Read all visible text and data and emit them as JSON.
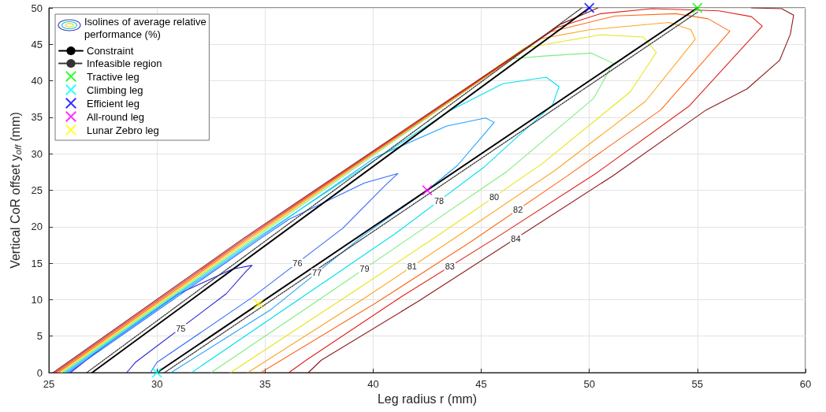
{
  "chart_data": {
    "type": "line",
    "xlabel": "Leg radius r (mm)",
    "ylabel": "Vertical CoR offset y$_{off}$ (mm)",
    "legend_title": "Isolines of average relative performance (%)",
    "xlim": [
      25,
      60
    ],
    "xticks": [
      25,
      30,
      35,
      40,
      45,
      50,
      55,
      60
    ],
    "ylim": [
      0,
      50
    ],
    "yticks": [
      0,
      5,
      10,
      15,
      20,
      25,
      30,
      35,
      40,
      45,
      50
    ],
    "grid": true,
    "legend": "top left",
    "marker": "cross",
    "annotations": [
      {
        "text": "75",
        "x": 31.1,
        "y": 6.1
      },
      {
        "text": "76",
        "x": 36.5,
        "y": 15.05
      },
      {
        "text": "77",
        "x": 37.4,
        "y": 13.7
      },
      {
        "text": "78",
        "x": 43.05,
        "y": 23.55
      },
      {
        "text": "79",
        "x": 39.6,
        "y": 14.25
      },
      {
        "text": "80",
        "x": 45.6,
        "y": 24.1
      },
      {
        "text": "81",
        "x": 41.8,
        "y": 14.55
      },
      {
        "text": "82",
        "x": 46.7,
        "y": 22.35
      },
      {
        "text": "83",
        "x": 43.55,
        "y": 14.55
      },
      {
        "text": "84",
        "x": 46.6,
        "y": 18.4
      }
    ],
    "series": [
      {
        "color": "#2424d8",
        "marker": "none",
        "x": [
          26.0,
          27.5,
          31.0,
          33.5,
          34.4,
          34.1,
          33.2,
          29.0,
          28.6
        ],
        "values": [
          0,
          3.5,
          10.8,
          14.2,
          14.7,
          13.8,
          10.8,
          1.4,
          0
        ]
      },
      {
        "color": "#2f6bff",
        "marker": "none",
        "x": [
          25.9,
          34.8,
          36.1,
          39.6,
          41.15,
          40.5,
          38.6,
          34.4,
          30.0,
          29.7
        ],
        "values": [
          0,
          18.4,
          21,
          26.0,
          27.3,
          25.5,
          19.8,
          10.3,
          1.4,
          0
        ]
      },
      {
        "color": "#1ea0ff",
        "marker": "none",
        "x": [
          25.8,
          34.7,
          40.1,
          43.4,
          45.2,
          45.6,
          43.9,
          42.5,
          39.5,
          35.3,
          30.65
        ],
        "values": [
          0,
          18.4,
          29.5,
          33.8,
          34.9,
          34.3,
          28.4,
          25,
          18.7,
          8.7,
          0
        ]
      },
      {
        "color": "#00e0f0",
        "marker": "none",
        "x": [
          25.7,
          34.6,
          43.6,
          46.0,
          48.0,
          48.6,
          48.3,
          45.1,
          41.0,
          31.6
        ],
        "values": [
          0,
          18.4,
          36.0,
          39.6,
          40.5,
          39.2,
          36.7,
          28.1,
          19.0,
          0
        ]
      },
      {
        "color": "#80ec80",
        "marker": "none",
        "x": [
          25.6,
          34.5,
          46.4,
          47.9,
          50.1,
          51.1,
          50.2,
          46.2,
          41.8,
          37.4,
          32.5
        ],
        "values": [
          0,
          18.4,
          43.0,
          43.4,
          43.8,
          42.4,
          37.6,
          27.6,
          18.7,
          9.8,
          0
        ]
      },
      {
        "color": "#e6e619",
        "marker": "none",
        "x": [
          25.55,
          34.4,
          47.0,
          50.5,
          52.5,
          53.1,
          51.9,
          47.8,
          43.4,
          39.0,
          33.4
        ],
        "values": [
          0,
          18.4,
          44.5,
          46.3,
          46.0,
          43.9,
          38.5,
          28.6,
          19.6,
          10.9,
          0
        ]
      },
      {
        "color": "#ffa520",
        "marker": "none",
        "x": [
          25.45,
          34.3,
          47.8,
          50.0,
          53.7,
          54.7,
          54.9,
          52.6,
          48.4,
          44.0,
          39.6,
          34.2
        ],
        "values": [
          0,
          18.4,
          45.8,
          47.0,
          48.0,
          47.0,
          45.7,
          37.2,
          27.7,
          18.9,
          10.2,
          0
        ]
      },
      {
        "color": "#ff6a1a",
        "marker": "none",
        "x": [
          25.4,
          34.2,
          48.2,
          51.2,
          54.0,
          55.5,
          56.5,
          53.3,
          48.9,
          44.5,
          40.1,
          34.8
        ],
        "values": [
          0,
          18.4,
          46.7,
          48.9,
          49.2,
          48.5,
          46.8,
          36.0,
          26.8,
          17.9,
          9.5,
          0
        ]
      },
      {
        "color": "#e0201a",
        "marker": "none",
        "x": [
          25.3,
          34.1,
          48.5,
          50.5,
          52.9,
          56.0,
          57.5,
          58.0,
          54.6,
          50.3,
          45.8,
          41.3,
          36.9,
          36.1
        ],
        "values": [
          0,
          18.4,
          47.3,
          49.2,
          49.9,
          49.6,
          48.8,
          47.5,
          36.5,
          27.3,
          18.7,
          10.4,
          1.7,
          0
        ]
      },
      {
        "color": "#8b1a1a",
        "marker": "none",
        "x": [
          25.2,
          34.0,
          48.7,
          50.4,
          null,
          57.5,
          58.9,
          59.45,
          59.3,
          58.8,
          57.3,
          55.4,
          51.1,
          42.1,
          37.6,
          37.0
        ],
        "values": [
          0,
          18.4,
          47.8,
          50,
          null,
          50,
          49.9,
          49.0,
          46.4,
          42.8,
          38.9,
          36.0,
          27.0,
          9.8,
          1.7,
          0
        ]
      },
      {
        "name": "Constraint",
        "color": "#000000",
        "marker": "none",
        "line_style": "solid",
        "x": [
          27,
          50,
          null,
          30,
          55
        ],
        "values": [
          0,
          50,
          null,
          0,
          50
        ]
      },
      {
        "name": "Infeasible region",
        "color": "#333333",
        "marker": "none",
        "line_style": "dotted",
        "x": [
          26.75,
          49.65,
          null,
          30.35,
          55
        ],
        "values": [
          0,
          50,
          null,
          0,
          49.4
        ]
      },
      {
        "name": "Tractive leg",
        "type": "scatter",
        "color": "#00ff00",
        "x": [
          55
        ],
        "values": [
          50
        ]
      },
      {
        "name": "Climbing leg",
        "type": "scatter",
        "color": "#00ffff",
        "x": [
          30
        ],
        "values": [
          0
        ]
      },
      {
        "name": "Efficient leg",
        "type": "scatter",
        "color": "#0000ff",
        "x": [
          50
        ],
        "values": [
          50
        ]
      },
      {
        "name": "All-round leg",
        "type": "scatter",
        "color": "#ff00ff",
        "x": [
          42.5
        ],
        "values": [
          25
        ]
      },
      {
        "name": "Lunar Zebro leg",
        "type": "scatter",
        "color": "#ffff00",
        "x": [
          34.7
        ],
        "values": [
          9.4
        ]
      }
    ]
  }
}
